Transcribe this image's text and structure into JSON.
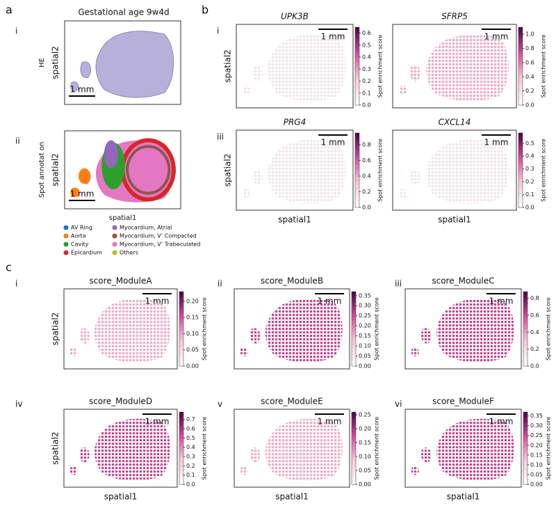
{
  "panel_labels": [
    "a",
    "b",
    "c"
  ],
  "a": {
    "title": "Gestational age 9w4d",
    "rows": [
      {
        "numeral": "i",
        "row_label": "HE",
        "ylabel": "spatial2",
        "scalebar": "1 mm"
      },
      {
        "numeral": "ii",
        "row_label": "Spot annotat on",
        "ylabel": "spatial2",
        "xlabel": "spatial1",
        "scalebar": "1 mm"
      }
    ],
    "legend": [
      {
        "name": "AV Ring",
        "color": "#1f77b4"
      },
      {
        "name": "Aorta",
        "color": "#ff7f0e"
      },
      {
        "name": "Cavity",
        "color": "#2ca02c"
      },
      {
        "name": "Epicardium",
        "color": "#d62728"
      },
      {
        "name": "Myocardium, Atrial",
        "color": "#9467bd"
      },
      {
        "name": "Myocardium, V’ Compacted",
        "color": "#8c564b"
      },
      {
        "name": "Myocardium, V’ Trabeculated",
        "color": "#e377c2"
      },
      {
        "name": "Others",
        "color": "#bcbd22"
      }
    ]
  },
  "b": {
    "plots": [
      {
        "numeral": "i",
        "title": "UPK3B",
        "ylabel": "spatial2",
        "scalebar": "1 mm",
        "colorbar_label": "Spot enrichment score",
        "clim": [
          0,
          0.65
        ],
        "ticks": [
          {
            "value": 0,
            "label": "0.0"
          },
          0.1,
          0.2,
          0.3,
          0.4,
          0.5,
          0.6
        ]
      },
      {
        "numeral": "ii",
        "title": "SFRP5",
        "scalebar": "1 mm",
        "colorbar_label": "Spot enrichment score",
        "clim": [
          0,
          1.1
        ],
        "ticks": [
          {
            "value": 0,
            "label": "0.0"
          },
          0.2,
          0.4,
          0.6,
          0.8,
          {
            "value": 1,
            "label": "1.0"
          }
        ]
      },
      {
        "numeral": "iii",
        "title": "PRG4",
        "ylabel": "spatial2",
        "xlabel": "spatial1",
        "scalebar": "1 mm",
        "colorbar_label": "Spot enrichment score",
        "clim": [
          0,
          0.95
        ],
        "ticks": [
          {
            "value": 0,
            "label": "0.0"
          },
          0.2,
          0.4,
          0.6,
          0.8
        ]
      },
      {
        "numeral": "iv",
        "title": "CXCL14",
        "xlabel": "spatial1",
        "scalebar": "1 mm",
        "colorbar_label": "Spot enrichment score",
        "clim": [
          0,
          0.58
        ],
        "ticks": [
          {
            "value": 0,
            "label": "0.0"
          },
          0.1,
          0.2,
          0.3,
          0.4,
          0.5
        ]
      }
    ]
  },
  "c": {
    "plots": [
      {
        "numeral": "i",
        "title": "score_ModuleA",
        "ylabel": "spatial2",
        "scalebar": "1 mm",
        "colorbar_label": "Spot enrichment score",
        "clim": [
          0,
          0.23
        ],
        "ticks": [
          {
            "value": 0,
            "label": "0.00"
          },
          0.05,
          {
            "value": 0.1,
            "label": "0.10"
          },
          0.15,
          {
            "value": 0.2,
            "label": "0.20"
          }
        ]
      },
      {
        "numeral": "ii",
        "title": "score_ModuleB",
        "scalebar": "1 mm",
        "colorbar_label": "Spot enrichment score",
        "clim": [
          0,
          0.37
        ],
        "ticks": [
          {
            "value": 0,
            "label": "0.00"
          },
          0.05,
          {
            "value": 0.1,
            "label": "0.10"
          },
          0.15,
          {
            "value": 0.2,
            "label": "0.20"
          },
          0.25,
          {
            "value": 0.3,
            "label": "0.30"
          },
          0.35
        ]
      },
      {
        "numeral": "iii",
        "title": "score_ModuleC",
        "scalebar": "1 mm",
        "colorbar_label": "Spot enrichment score",
        "clim": [
          0,
          0.88
        ],
        "ticks": [
          {
            "value": 0,
            "label": "0.0"
          },
          0.2,
          0.4,
          0.6,
          0.8
        ]
      },
      {
        "numeral": "iv",
        "title": "score_ModuleD",
        "ylabel": "spatial2",
        "xlabel": "spatial1",
        "scalebar": "1 mm",
        "colorbar_label": "Spot enrichment score",
        "clim": [
          0,
          0.78
        ],
        "ticks": [
          {
            "value": 0,
            "label": "0.0"
          },
          0.1,
          0.2,
          0.3,
          0.4,
          0.5,
          0.6,
          0.7
        ]
      },
      {
        "numeral": "v",
        "title": "score_ModuleE",
        "xlabel": "spatial1",
        "scalebar": "1 mm",
        "colorbar_label": "Spot enrichment score",
        "clim": [
          0,
          0.26
        ],
        "ticks": [
          {
            "value": 0,
            "label": "0.00"
          },
          0.05,
          {
            "value": 0.1,
            "label": "0.10"
          },
          0.15,
          {
            "value": 0.2,
            "label": "0.20"
          },
          0.25
        ]
      },
      {
        "numeral": "vi",
        "title": "score_ModuleF",
        "xlabel": "spatial1",
        "scalebar": "1 mm",
        "colorbar_label": "Spot enrichment score",
        "clim": [
          0,
          0.37
        ],
        "ticks": [
          {
            "value": 0,
            "label": "0.00"
          },
          0.05,
          {
            "value": 0.1,
            "label": "0.10"
          },
          0.15,
          {
            "value": 0.2,
            "label": "0.20"
          },
          0.25,
          {
            "value": 0.3,
            "label": "0.30"
          },
          0.35
        ]
      }
    ]
  }
}
